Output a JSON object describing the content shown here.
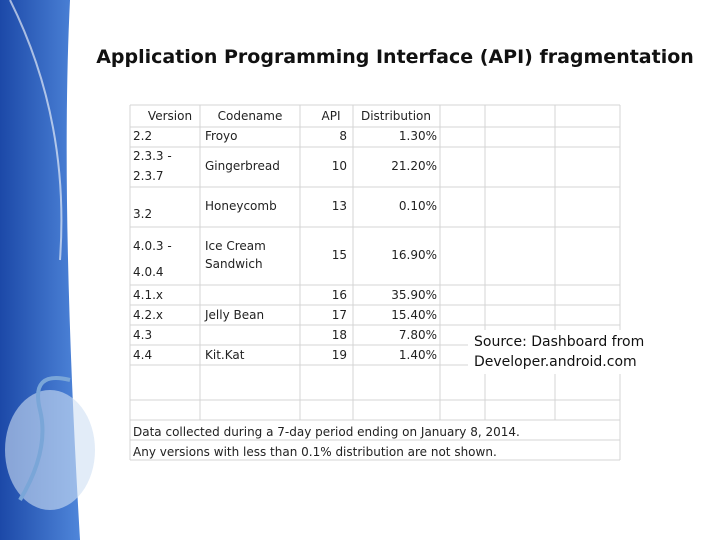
{
  "title": "Application Programming Interface (API) fragmentation",
  "table": {
    "header": [
      "Version",
      "Codename",
      "API",
      "Distribution"
    ],
    "rows": [
      {
        "version": [
          "2.2"
        ],
        "codename": [
          "Froyo"
        ],
        "api": "8",
        "distribution": "1.30%"
      },
      {
        "version": [
          "2.3.3 -",
          "2.3.7"
        ],
        "codename": [
          "Gingerbread"
        ],
        "api": "10",
        "distribution": "21.20%"
      },
      {
        "version": [
          "3.2"
        ],
        "codename": [
          "Honeycomb"
        ],
        "api": "13",
        "distribution": "0.10%"
      },
      {
        "version": [
          "4.0.3 -",
          "4.0.4"
        ],
        "codename": [
          "Ice Cream",
          "Sandwich"
        ],
        "api": "15",
        "distribution": "16.90%"
      },
      {
        "version": [
          "4.1.x"
        ],
        "api": "16",
        "distribution": "35.90%"
      },
      {
        "version": [
          "4.2.x"
        ],
        "codename": [
          "Jelly Bean"
        ],
        "api": "17",
        "distribution": "15.40%"
      },
      {
        "version": [
          "4.3"
        ],
        "api": "18",
        "distribution": "7.80%"
      },
      {
        "version": [
          "4.4"
        ],
        "codename": [
          "Kit.Kat"
        ],
        "api": "19",
        "distribution": "1.40%"
      }
    ]
  },
  "source": [
    "Source: Dashboard from",
    "Developer.android.com"
  ],
  "footnote": [
    "Data collected during a 7-day period ending on January 8, 2014.",
    "Any versions with less than 0.1% distribution are not shown."
  ]
}
